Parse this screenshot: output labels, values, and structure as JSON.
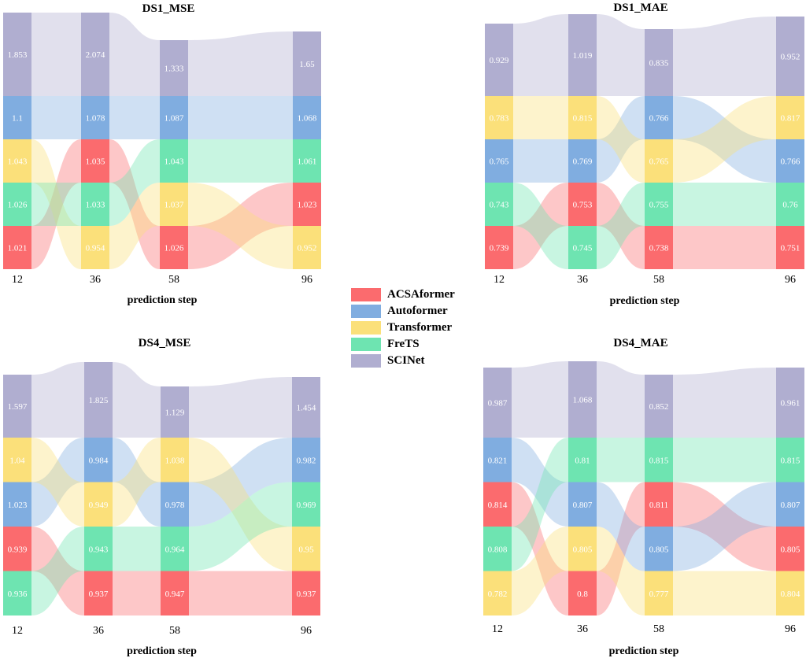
{
  "legend": {
    "items": [
      {
        "name": "ACSAformer",
        "color": "#fb6b6e"
      },
      {
        "name": "Autoformer",
        "color": "#80ade0"
      },
      {
        "name": "Transformer",
        "color": "#fbe07a"
      },
      {
        "name": "FreTS",
        "color": "#6ee4b1"
      },
      {
        "name": "SCINet",
        "color": "#b0aed0"
      }
    ]
  },
  "chart_data": [
    {
      "type": "area",
      "subtype": "ranked-stream",
      "title": "DS1_MSE",
      "xlabel": "prediction step",
      "x": [
        "12",
        "36",
        "58",
        "96"
      ],
      "series": [
        {
          "name": "ACSAformer",
          "values": [
            "1.021",
            "1.035",
            "1.026",
            "1.023"
          ]
        },
        {
          "name": "Autoformer",
          "values": [
            "1.1",
            "1.078",
            "1.087",
            "1.068"
          ]
        },
        {
          "name": "Transformer",
          "values": [
            "1.043",
            "0.954",
            "1.037",
            "0.952"
          ]
        },
        {
          "name": "FreTS",
          "values": [
            "1.026",
            "1.033",
            "1.043",
            "1.061"
          ]
        },
        {
          "name": "SCINet",
          "values": [
            "1.853",
            "2.074",
            "1.333",
            "1.65"
          ]
        }
      ]
    },
    {
      "type": "area",
      "subtype": "ranked-stream",
      "title": "DS1_MAE",
      "xlabel": "prediction step",
      "x": [
        "12",
        "36",
        "58",
        "96"
      ],
      "series": [
        {
          "name": "ACSAformer",
          "values": [
            "0.739",
            "0.753",
            "0.738",
            "0.751"
          ]
        },
        {
          "name": "Autoformer",
          "values": [
            "0.765",
            "0.769",
            "0.766",
            "0.766"
          ]
        },
        {
          "name": "Transformer",
          "values": [
            "0.783",
            "0.815",
            "0.765",
            "0.817"
          ]
        },
        {
          "name": "FreTS",
          "values": [
            "0.743",
            "0.745",
            "0.755",
            "0.76"
          ]
        },
        {
          "name": "SCINet",
          "values": [
            "0.929",
            "1.019",
            "0.835",
            "0.952"
          ]
        }
      ]
    },
    {
      "type": "area",
      "subtype": "ranked-stream",
      "title": "DS4_MSE",
      "xlabel": "prediction step",
      "x": [
        "12",
        "36",
        "58",
        "96"
      ],
      "series": [
        {
          "name": "ACSAformer",
          "values": [
            "0.939",
            "0.937",
            "0.947",
            "0.937"
          ]
        },
        {
          "name": "Autoformer",
          "values": [
            "1.023",
            "0.984",
            "0.978",
            "0.982"
          ]
        },
        {
          "name": "Transformer",
          "values": [
            "1.04",
            "0.949",
            "1.038",
            "0.95"
          ]
        },
        {
          "name": "FreTS",
          "values": [
            "0.936",
            "0.943",
            "0.964",
            "0.969"
          ]
        },
        {
          "name": "SCINet",
          "values": [
            "1.597",
            "1.825",
            "1.129",
            "1.454"
          ]
        }
      ]
    },
    {
      "type": "area",
      "subtype": "ranked-stream",
      "title": "DS4_MAE",
      "xlabel": "prediction step",
      "x": [
        "12",
        "36",
        "58",
        "96"
      ],
      "series": [
        {
          "name": "ACSAformer",
          "values": [
            "0.814",
            "0.8",
            "0.811",
            "0.805"
          ]
        },
        {
          "name": "Autoformer",
          "values": [
            "0.821",
            "0.807",
            "0.805",
            "0.807"
          ]
        },
        {
          "name": "Transformer",
          "values": [
            "0.782",
            "0.805",
            "0.777",
            "0.804"
          ]
        },
        {
          "name": "FreTS",
          "values": [
            "0.808",
            "0.81",
            "0.815",
            "0.815"
          ]
        },
        {
          "name": "SCINet",
          "values": [
            "0.987",
            "1.068",
            "0.852",
            "0.961"
          ]
        }
      ]
    }
  ]
}
